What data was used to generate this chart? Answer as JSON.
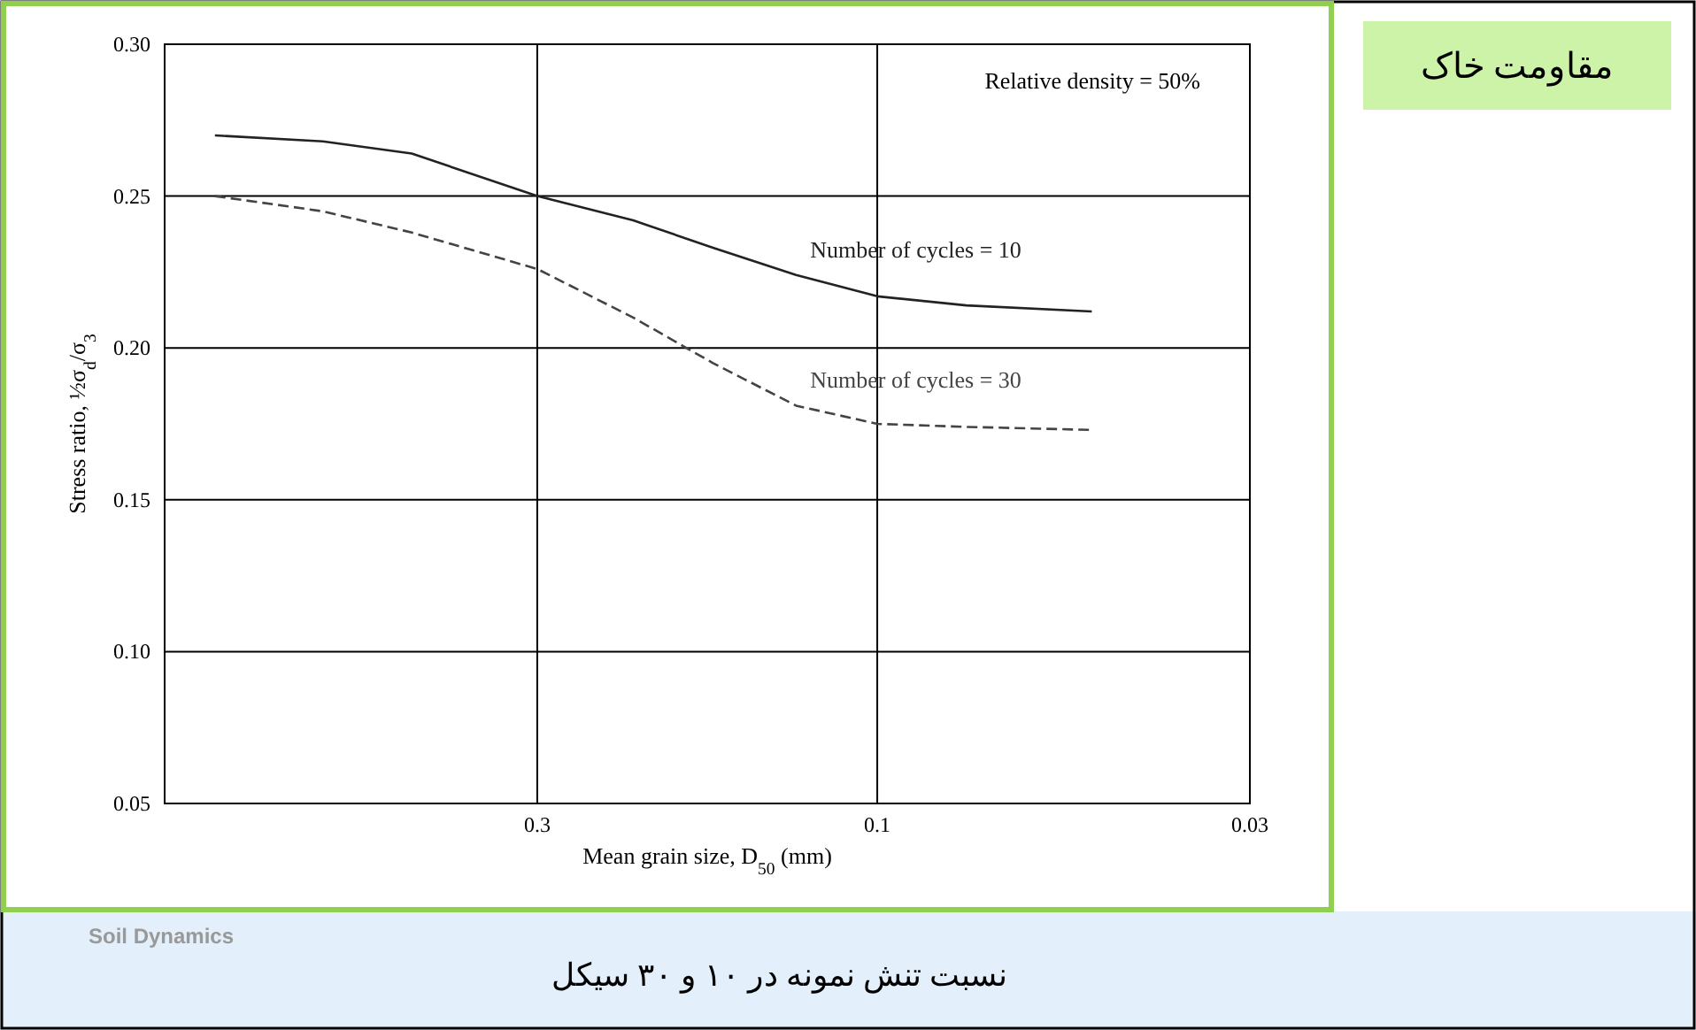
{
  "chart_data": {
    "type": "line",
    "title": "مقاومت خاک",
    "subtitle": "نسبت تنش نمونه در ۱۰ و ۳۰ سیکل",
    "xlabel": "Mean grain size, D$_{50}$ (mm)",
    "ylabel": "Stress ratio, ½σ$_{d}$/σ$_{3}$",
    "x": [
      0.85,
      0.6,
      0.45,
      0.3,
      0.22,
      0.17,
      0.13,
      0.1,
      0.075,
      0.05
    ],
    "series": [
      {
        "name": "Number of cycles = 10",
        "color": "#222222",
        "line_style": "solid",
        "values": [
          0.27,
          0.268,
          0.264,
          0.25,
          0.242,
          0.233,
          0.224,
          0.217,
          0.214,
          0.212
        ]
      },
      {
        "name": "Number of cycles = 30",
        "color": "#444444",
        "line_style": "dashed",
        "values": [
          0.25,
          0.245,
          0.238,
          0.226,
          0.21,
          0.195,
          0.181,
          0.175,
          0.174,
          0.173
        ]
      }
    ],
    "log": "x",
    "xlim": [
      1,
      0.03
    ],
    "xticks": [
      0.3,
      0.1,
      0.03
    ],
    "ylim": [
      0.05,
      0.3
    ],
    "yticks": [
      0.05,
      {
        "value": 0.1,
        "label": "0.10"
      },
      0.15,
      {
        "value": 0.2,
        "label": "0.20"
      },
      0.25,
      {
        "value": 0.3,
        "label": "0.30"
      }
    ],
    "grid": true,
    "legend": false,
    "annotations": [
      "Relative density  = 50%",
      "Soil Dynamics"
    ]
  }
}
